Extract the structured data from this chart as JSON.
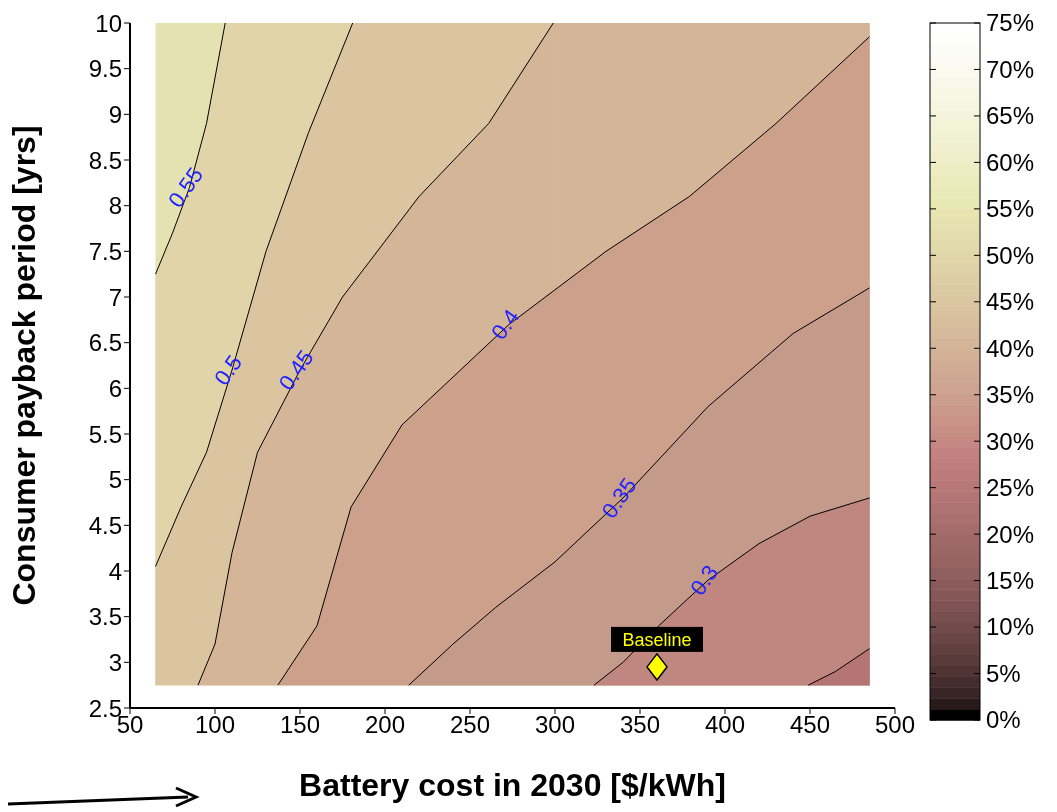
{
  "chart_data": {
    "type": "area",
    "xlabel": "Battery cost in 2030 [$/kWh]",
    "ylabel": "Consumer payback period [yrs]",
    "xlim": [
      50,
      500
    ],
    "xticks": [
      50,
      100,
      150,
      200,
      250,
      300,
      350,
      400,
      450,
      500
    ],
    "ylim": [
      2.5,
      10
    ],
    "yticks": [
      2.5,
      3,
      3.5,
      4,
      4.5,
      5,
      5.5,
      6,
      6.5,
      7,
      7.5,
      8,
      8.5,
      9,
      9.5,
      10
    ],
    "clim": [
      0,
      75
    ],
    "cticks": [
      {
        "value": 0,
        "label": "0%"
      },
      {
        "value": 5,
        "label": "5%"
      },
      {
        "value": 10,
        "label": "10%"
      },
      {
        "value": 15,
        "label": "15%"
      },
      {
        "value": 20,
        "label": "20%"
      },
      {
        "value": 25,
        "label": "25%"
      },
      {
        "value": 30,
        "label": "30%"
      },
      {
        "value": 35,
        "label": "35%"
      },
      {
        "value": 40,
        "label": "40%"
      },
      {
        "value": 45,
        "label": "45%"
      },
      {
        "value": 50,
        "label": "50%"
      },
      {
        "value": 55,
        "label": "55%"
      },
      {
        "value": 60,
        "label": "60%"
      },
      {
        "value": 65,
        "label": "65%"
      },
      {
        "value": 70,
        "label": "70%"
      },
      {
        "value": 75,
        "label": "75%"
      }
    ],
    "bands": [
      {
        "axis": "x",
        "from": 65,
        "to": 485,
        "color": "#e5e2b2"
      },
      {
        "axis": "x",
        "from": 106,
        "to": 485,
        "color": "#e0d4a8"
      },
      {
        "axis": "x",
        "from": 181,
        "to": 485,
        "color": "#dbc5a0"
      },
      {
        "axis": "x",
        "from": 299,
        "to": 485,
        "color": "#d4b598"
      }
    ],
    "series": [
      {
        "name": "0.55",
        "color": "#e0d4a8",
        "x": [
          65,
          75,
          85,
          95,
          106
        ],
        "values": [
          7.25,
          7.7,
          8.2,
          8.9,
          10
        ]
      },
      {
        "name": "0.5",
        "color": "#dbc5a0",
        "x": [
          65,
          80,
          95,
          110,
          130,
          155,
          181
        ],
        "values": [
          4.05,
          4.7,
          5.3,
          6.2,
          7.5,
          8.8,
          10
        ]
      },
      {
        "name": "0.45",
        "color": "#d4b598",
        "x": [
          90,
          100,
          110,
          125,
          150,
          175,
          220,
          261,
          299
        ],
        "values": [
          2.75,
          3.2,
          4.2,
          5.3,
          6.2,
          7.0,
          8.1,
          8.9,
          10
        ]
      },
      {
        "name": "0.4",
        "color": "#cda08c",
        "x": [
          137,
          160,
          180,
          210,
          273,
          330,
          379,
          430,
          485
        ],
        "values": [
          2.75,
          3.4,
          4.7,
          5.6,
          6.7,
          7.5,
          8.1,
          8.9,
          9.85
        ]
      },
      {
        "name": "0.35",
        "color": "#c49a8b",
        "x": [
          214,
          240,
          265,
          300,
          340,
          390,
          440,
          485
        ],
        "values": [
          2.75,
          3.2,
          3.6,
          4.1,
          4.8,
          5.8,
          6.6,
          7.1
        ]
      },
      {
        "name": "0.3",
        "color": "#c08680",
        "x": [
          323,
          340,
          361,
          390,
          420,
          450,
          485
        ],
        "values": [
          2.75,
          3.0,
          3.4,
          3.9,
          4.3,
          4.6,
          4.8
        ]
      },
      {
        "color": "#b67575",
        "x": [
          449,
          465,
          485
        ],
        "values": [
          2.75,
          2.9,
          3.15
        ]
      },
      {
        "type": "scatter",
        "name": "Baseline",
        "color": "#ffff00",
        "marker": "diamond",
        "x": [
          360
        ],
        "values": [
          2.95
        ]
      }
    ]
  }
}
